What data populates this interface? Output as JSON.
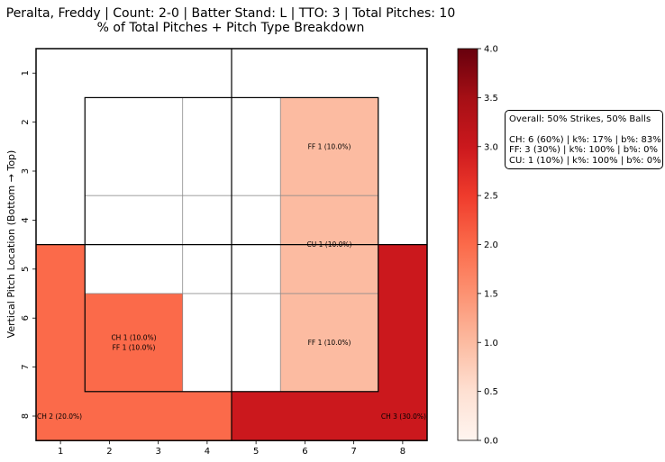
{
  "chart_data": {
    "type": "heatmap",
    "title": "Peralta, Freddy | Count: 2-0 | Batter Stand: L | TTO: 3 | Total Pitches: 10",
    "subtitle": "% of Total Pitches + Pitch Type Breakdown",
    "xlabel": "",
    "ylabel": "Vertical Pitch Location (Bottom → Top)",
    "x_ticks": [
      "1",
      "2",
      "3",
      "4",
      "5",
      "6",
      "7",
      "8"
    ],
    "y_ticks": [
      "1",
      "2",
      "3",
      "4",
      "5",
      "6",
      "7",
      "8"
    ],
    "colormap": "Reds",
    "colorbar": {
      "min": 0.0,
      "max": 4.0,
      "ticks": [
        "0.0",
        "0.5",
        "1.0",
        "1.5",
        "2.0",
        "2.5",
        "3.0",
        "3.5",
        "4.0"
      ]
    },
    "strike_zone": {
      "rows": [
        "2-3",
        "4-5",
        "6-7"
      ],
      "cols": [
        "2-3",
        "4-5",
        "6-7"
      ],
      "cells": [
        {
          "r": 0,
          "c": 0,
          "value": 0,
          "label": ""
        },
        {
          "r": 0,
          "c": 1,
          "value": 0,
          "label": ""
        },
        {
          "r": 0,
          "c": 2,
          "value": 1,
          "label": "FF 1 (10.0%)"
        },
        {
          "r": 1,
          "c": 0,
          "value": 0,
          "label": ""
        },
        {
          "r": 1,
          "c": 1,
          "value": 0,
          "label": ""
        },
        {
          "r": 1,
          "c": 2,
          "value": 1,
          "label": "CU 1 (10.0%)"
        },
        {
          "r": 2,
          "c": 0,
          "value": 2,
          "label": "CH 1 (10.0%)\nFF 1 (10.0%)"
        },
        {
          "r": 2,
          "c": 1,
          "value": 0,
          "label": ""
        },
        {
          "r": 2,
          "c": 2,
          "value": 1,
          "label": "FF 1 (10.0%)"
        }
      ]
    },
    "chase_zone": [
      {
        "region": "top-left",
        "value": 0,
        "label": ""
      },
      {
        "region": "top-right",
        "value": 0,
        "label": ""
      },
      {
        "region": "bottom-left",
        "value": 2,
        "label": "CH 2 (20.0%)"
      },
      {
        "region": "bottom-right",
        "value": 3,
        "label": "CH 3 (30.0%)"
      }
    ]
  },
  "stats_box": {
    "overall": "Overall: 50% Strikes, 50% Balls",
    "lines": [
      "CH: 6 (60%) | k%: 17% | b%: 83%",
      "FF: 3 (30%) | k%: 100% | b%: 0%",
      "CU: 1 (10%) | k%: 100% | b%: 0%"
    ]
  }
}
